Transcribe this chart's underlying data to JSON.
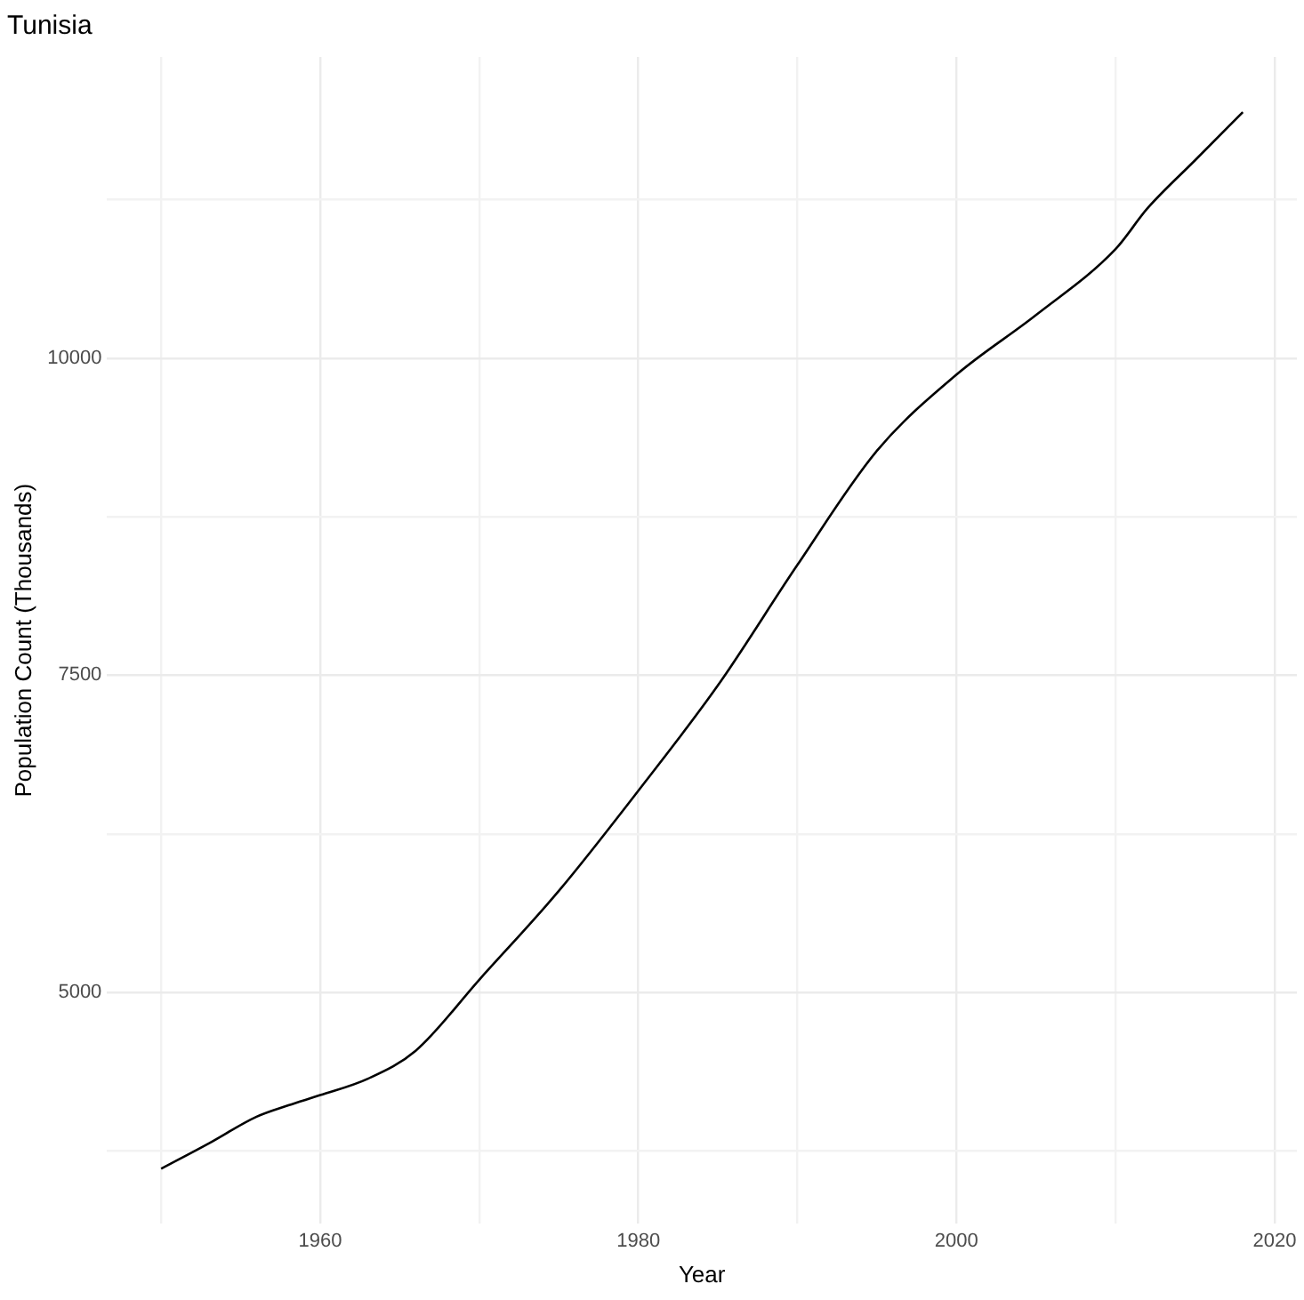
{
  "chart_data": {
    "type": "line",
    "title": "Tunisia",
    "xlabel": "Year",
    "ylabel": "Population Count (Thousands)",
    "x": [
      1950,
      1953,
      1956,
      1958,
      1960,
      1963,
      1966,
      1970,
      1975,
      1980,
      1985,
      1990,
      1995,
      2000,
      2005,
      2010,
      2012,
      2015,
      2018
    ],
    "series": [
      {
        "color": "#000000",
        "values": [
          3610,
          3810,
          4020,
          4110,
          4190,
          4320,
          4540,
          5100,
          5800,
          6590,
          7420,
          8370,
          9270,
          9870,
          10340,
          10860,
          11180,
          11560,
          11940
        ]
      }
    ],
    "xlim": [
      1946.6,
      2021.4
    ],
    "ylim": [
      3175,
      12375
    ],
    "xticks": [
      {
        "value": 1950,
        "label": null
      },
      1960,
      {
        "value": 1970,
        "label": null
      },
      1980,
      {
        "value": 1990,
        "label": null
      },
      2000,
      {
        "value": 2010,
        "label": null
      },
      2020
    ],
    "yticks": [
      {
        "value": 3750,
        "label": null
      },
      5000,
      {
        "value": 6250,
        "label": null
      },
      7500,
      {
        "value": 8750,
        "label": null
      },
      10000,
      {
        "value": 11250,
        "label": null
      }
    ],
    "grid": true,
    "legend": false,
    "marker": "none",
    "line_style": "solid"
  }
}
